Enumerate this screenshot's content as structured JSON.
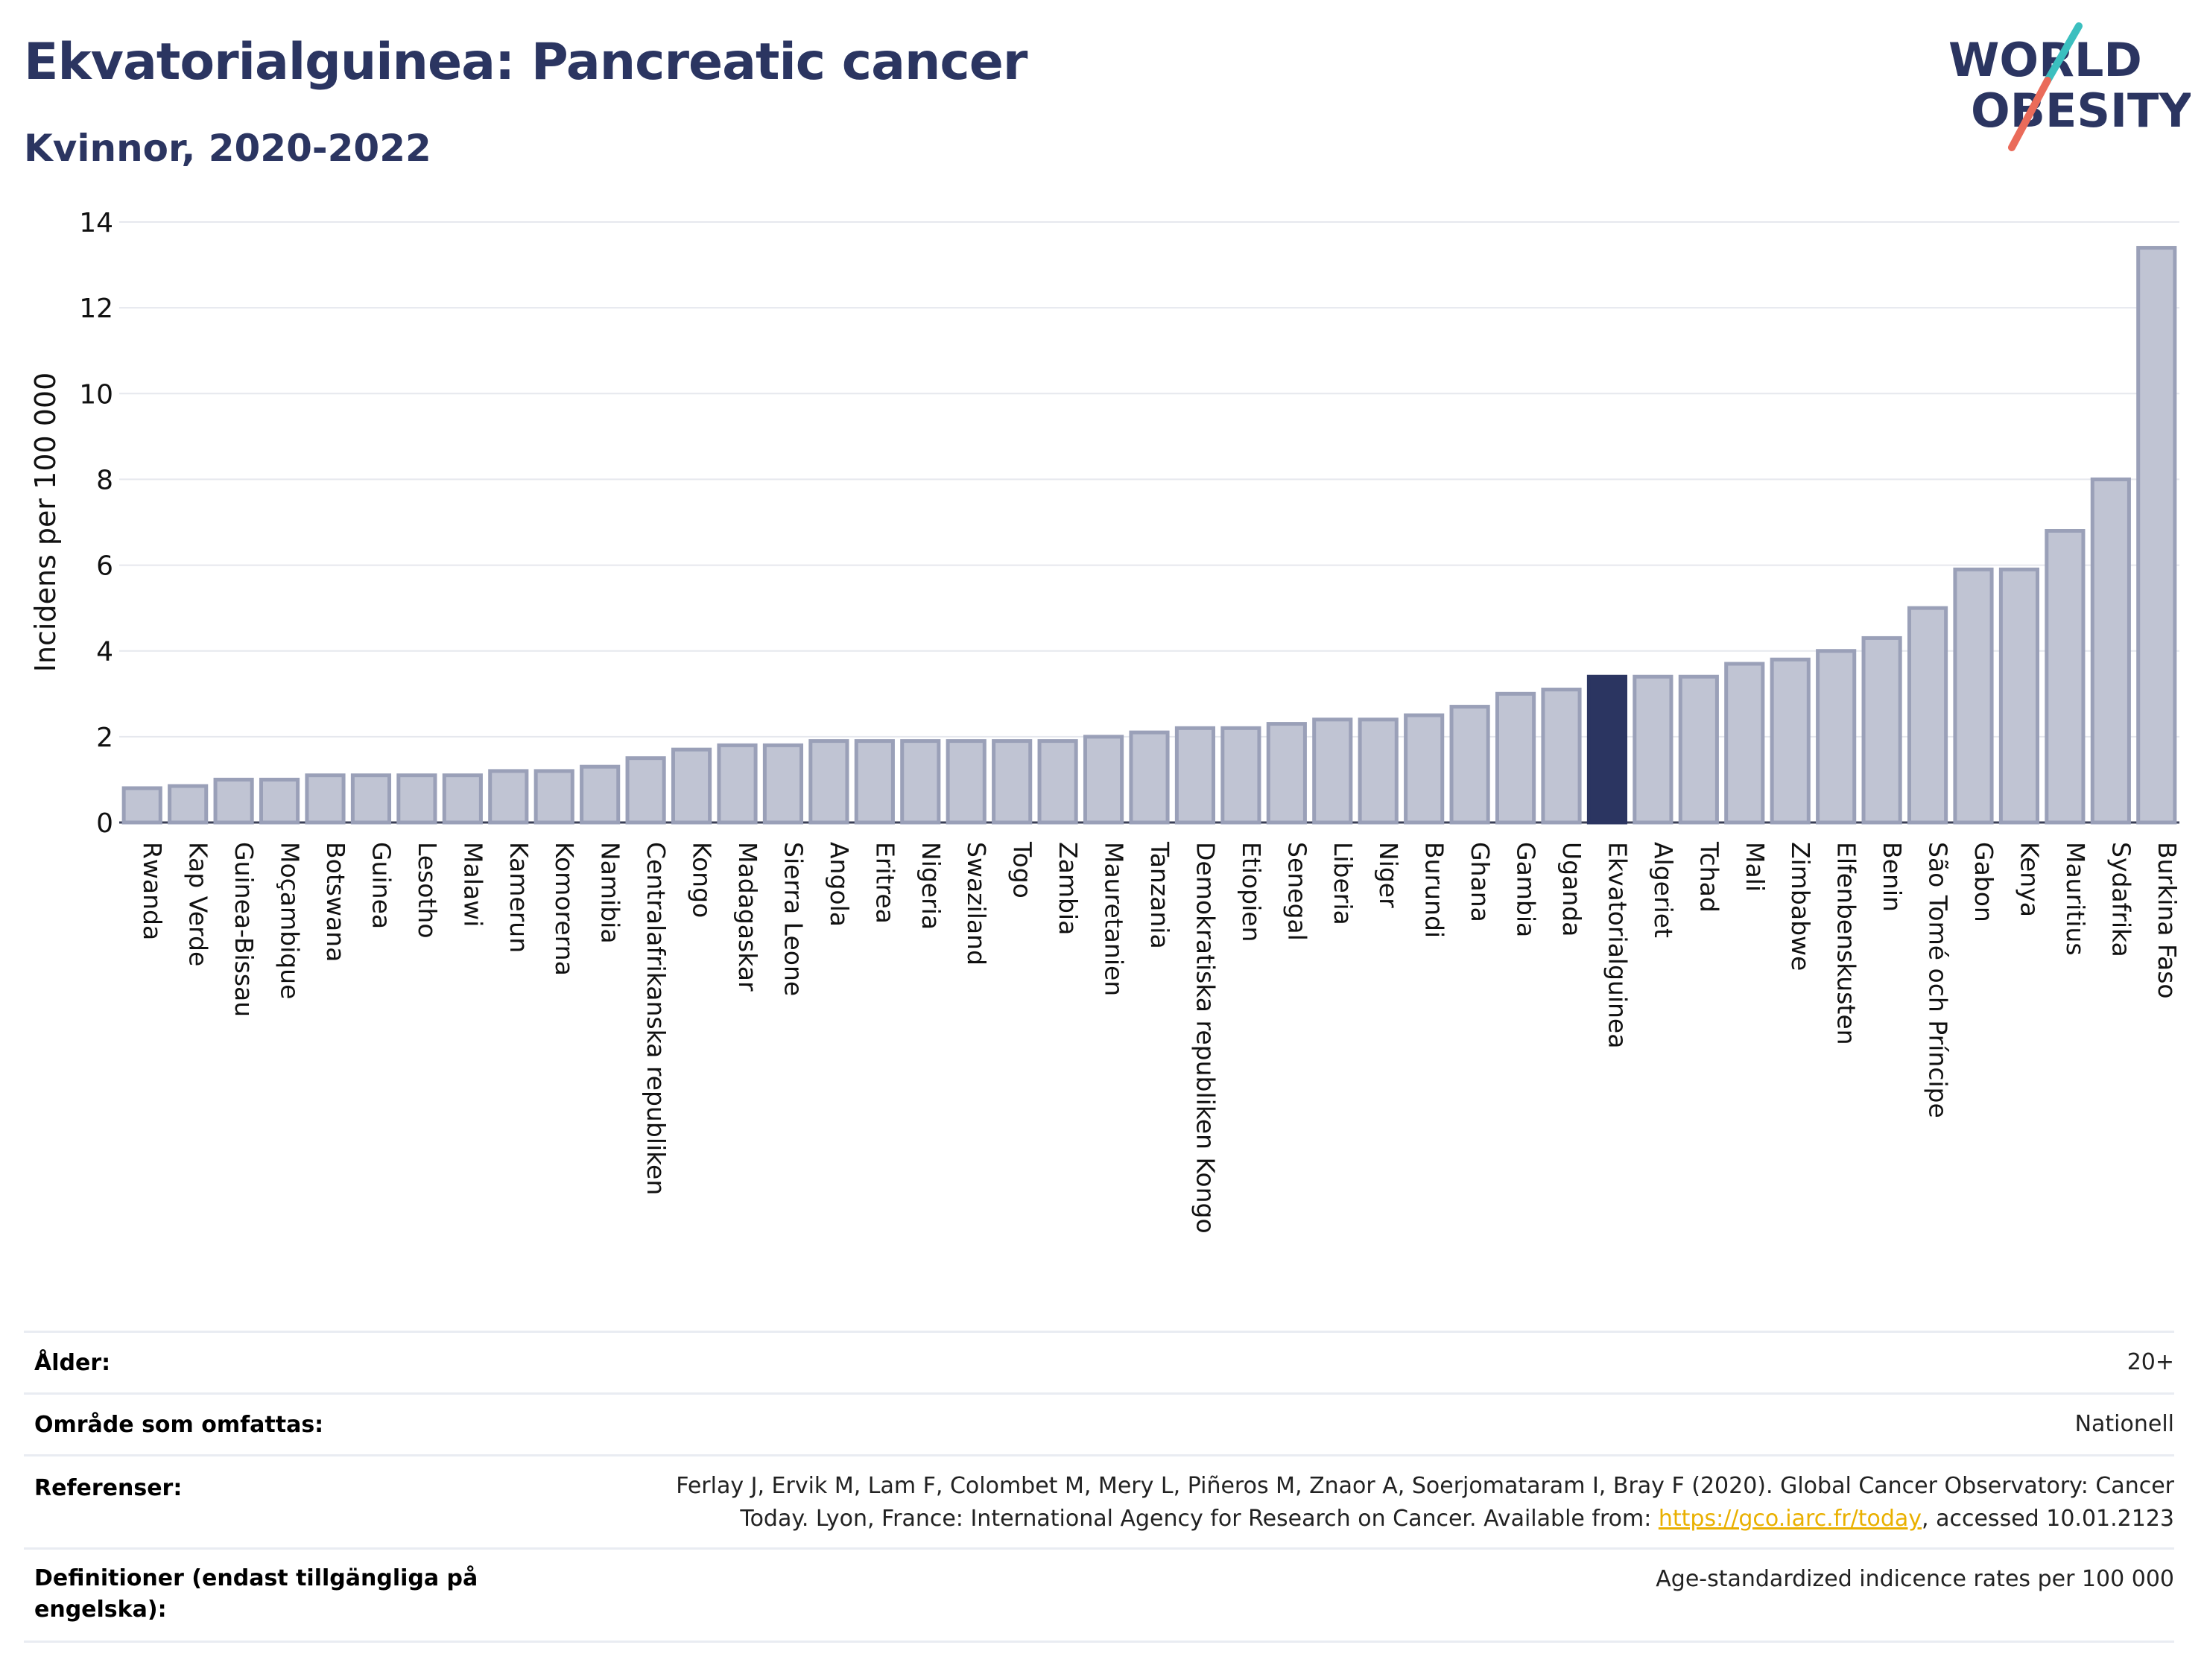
{
  "header": {
    "title": "Ekvatorialguinea: Pancreatic cancer",
    "subtitle": "Kvinnor, 2020-2022",
    "logo_line1": "WORLD",
    "logo_line2": "OBESITY"
  },
  "colors": {
    "title": "#2b3561",
    "bar_fill": "#c0c4d3",
    "bar_stroke": "#9aa0b8",
    "highlight": "#2b3561",
    "grid": "#e6e8ee",
    "logo_teal": "#3bbfbf",
    "logo_coral": "#ea6b5a"
  },
  "chart_data": {
    "type": "bar",
    "ylabel": "Incidens per 100 000",
    "ylim": [
      0,
      14
    ],
    "yticks": [
      0,
      2,
      4,
      6,
      8,
      10,
      12,
      14
    ],
    "highlight": "Ekvatorialguinea",
    "grid": true,
    "categories": [
      "Rwanda",
      "Kap Verde",
      "Guinea-Bissau",
      "Moçambique",
      "Botswana",
      "Guinea",
      "Lesotho",
      "Malawi",
      "Kamerun",
      "Komorerna",
      "Namibia",
      "Centralafrikanska republiken",
      "Kongo",
      "Madagaskar",
      "Sierra Leone",
      "Angola",
      "Eritrea",
      "Nigeria",
      "Swaziland",
      "Togo",
      "Zambia",
      "Mauretanien",
      "Tanzania",
      "Demokratiska republiken Kongo",
      "Etiopien",
      "Senegal",
      "Liberia",
      "Niger",
      "Burundi",
      "Ghana",
      "Gambia",
      "Uganda",
      "Ekvatorialguinea",
      "Algeriet",
      "Tchad",
      "Mali",
      "Zimbabwe",
      "Elfenbenskusten",
      "Benin",
      "São Tomé och Príncipe",
      "Gabon",
      "Kenya",
      "Mauritius",
      "Sydafrika",
      "Burkina Faso"
    ],
    "values": [
      0.8,
      0.85,
      1.0,
      1.0,
      1.1,
      1.1,
      1.1,
      1.1,
      1.2,
      1.2,
      1.3,
      1.5,
      1.7,
      1.8,
      1.8,
      1.9,
      1.9,
      1.9,
      1.9,
      1.9,
      1.9,
      2.0,
      2.1,
      2.2,
      2.2,
      2.3,
      2.4,
      2.4,
      2.5,
      2.7,
      3.0,
      3.1,
      3.4,
      3.4,
      3.4,
      3.7,
      3.8,
      4.0,
      4.3,
      5.0,
      5.9,
      5.9,
      6.8,
      8.0,
      13.4
    ]
  },
  "meta": {
    "age_label": "Ålder:",
    "age_value": "20+",
    "area_label": "Område som omfattas:",
    "area_value": "Nationell",
    "refs_label": "Referenser:",
    "refs_line1": "Ferlay J, Ervik M, Lam F, Colombet M, Mery L, Piñeros M, Znaor A, Soerjomataram I, Bray F (2020). Global Cancer Observatory: Cancer",
    "refs_line2_pre": "Today. Lyon, France: International Agency for Research on Cancer. Available from: ",
    "refs_link": "https://gco.iarc.fr/today",
    "refs_line2_post": ", accessed 10.01.2123",
    "defs_label_line1": "Definitioner (endast tillgängliga på",
    "defs_label_line2": "engelska):",
    "defs_value": "Age-standardized indicence rates per 100 000"
  }
}
